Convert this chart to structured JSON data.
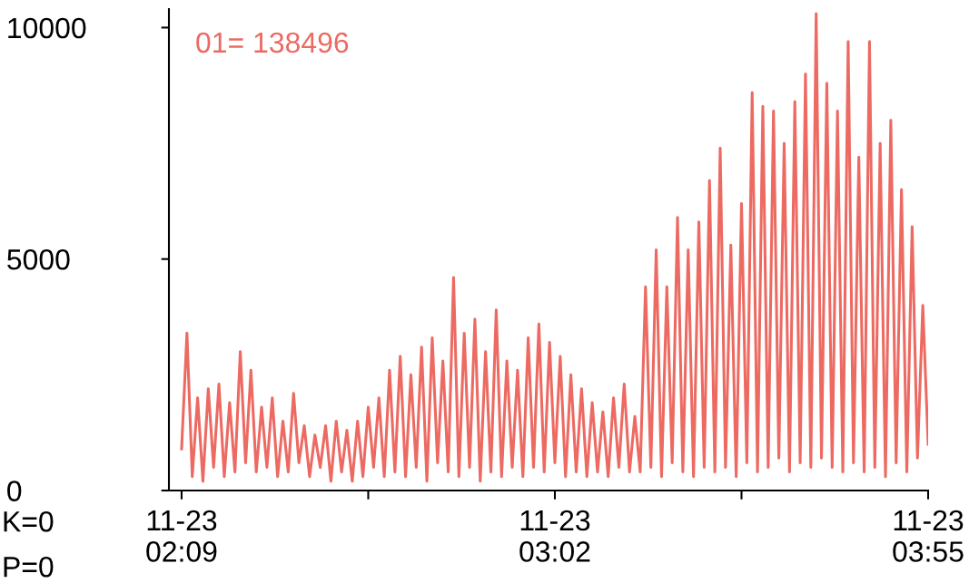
{
  "chart_data": {
    "type": "line",
    "annotations": [
      "01= 138496",
      "K=0",
      "P=0"
    ],
    "categories": [
      "11-23\n02:09",
      null,
      null,
      null,
      null,
      null,
      null,
      null,
      null,
      null,
      null,
      null,
      null,
      null,
      null,
      null,
      null,
      null,
      null,
      null,
      null,
      null,
      null,
      null,
      null,
      null,
      null,
      null,
      null,
      null,
      null,
      null,
      null,
      null,
      null,
      null,
      null,
      null,
      null,
      null,
      null,
      null,
      null,
      null,
      null,
      null,
      null,
      null,
      null,
      null,
      null,
      null,
      null,
      null,
      null,
      null,
      null,
      null,
      null,
      null,
      null,
      null,
      null,
      null,
      null,
      null,
      null,
      null,
      null,
      null,
      "11-23\n03:02",
      null,
      null,
      null,
      null,
      null,
      null,
      null,
      null,
      null,
      null,
      null,
      null,
      null,
      null,
      null,
      null,
      null,
      null,
      null,
      null,
      null,
      null,
      null,
      null,
      null,
      null,
      null,
      null,
      null,
      null,
      null,
      null,
      null,
      null,
      null,
      null,
      null,
      null,
      null,
      null,
      null,
      null,
      null,
      null,
      null,
      null,
      null,
      null,
      null,
      null,
      null,
      null,
      null,
      null,
      null,
      null,
      null,
      null,
      null,
      null,
      null,
      null,
      null,
      null,
      null,
      null,
      null,
      null,
      null,
      "11-23\n03:55"
    ],
    "ylim": [
      0,
      10400
    ],
    "yticks": [
      0,
      5000,
      10000
    ],
    "grid": false,
    "marker": "none",
    "line_style": "solid",
    "series": [
      {
        "color": "#ec6a62",
        "values": [
          900,
          3400,
          300,
          2000,
          200,
          2200,
          500,
          2300,
          300,
          1900,
          400,
          3000,
          600,
          2600,
          400,
          1800,
          500,
          2000,
          300,
          1500,
          400,
          2100,
          600,
          1400,
          300,
          1200,
          500,
          1400,
          200,
          1500,
          400,
          1300,
          200,
          1500,
          300,
          1800,
          500,
          2000,
          300,
          2600,
          400,
          2900,
          300,
          2500,
          500,
          3100,
          200,
          3300,
          600,
          2800,
          400,
          4600,
          300,
          3400,
          500,
          3700,
          200,
          3000,
          400,
          3900,
          300,
          2800,
          500,
          2600,
          300,
          3300,
          500,
          3600,
          400,
          3200,
          600,
          2900,
          300,
          2500,
          400,
          2200,
          300,
          1900,
          400,
          1700,
          300,
          2000,
          500,
          2300,
          400,
          1600,
          400,
          4400,
          500,
          5200,
          300,
          4400,
          600,
          5900,
          400,
          5200,
          300,
          5800,
          500,
          6700,
          400,
          7400,
          500,
          5300,
          300,
          6200,
          600,
          8600,
          400,
          8300,
          500,
          8200,
          700,
          7500,
          400,
          8400,
          600,
          9000,
          500,
          10300,
          700,
          8800,
          500,
          8200,
          400,
          9700,
          600,
          7200,
          400,
          9700,
          500,
          7500,
          300,
          8000,
          600,
          6500,
          400,
          5700,
          700,
          4000,
          1000
        ]
      }
    ]
  }
}
